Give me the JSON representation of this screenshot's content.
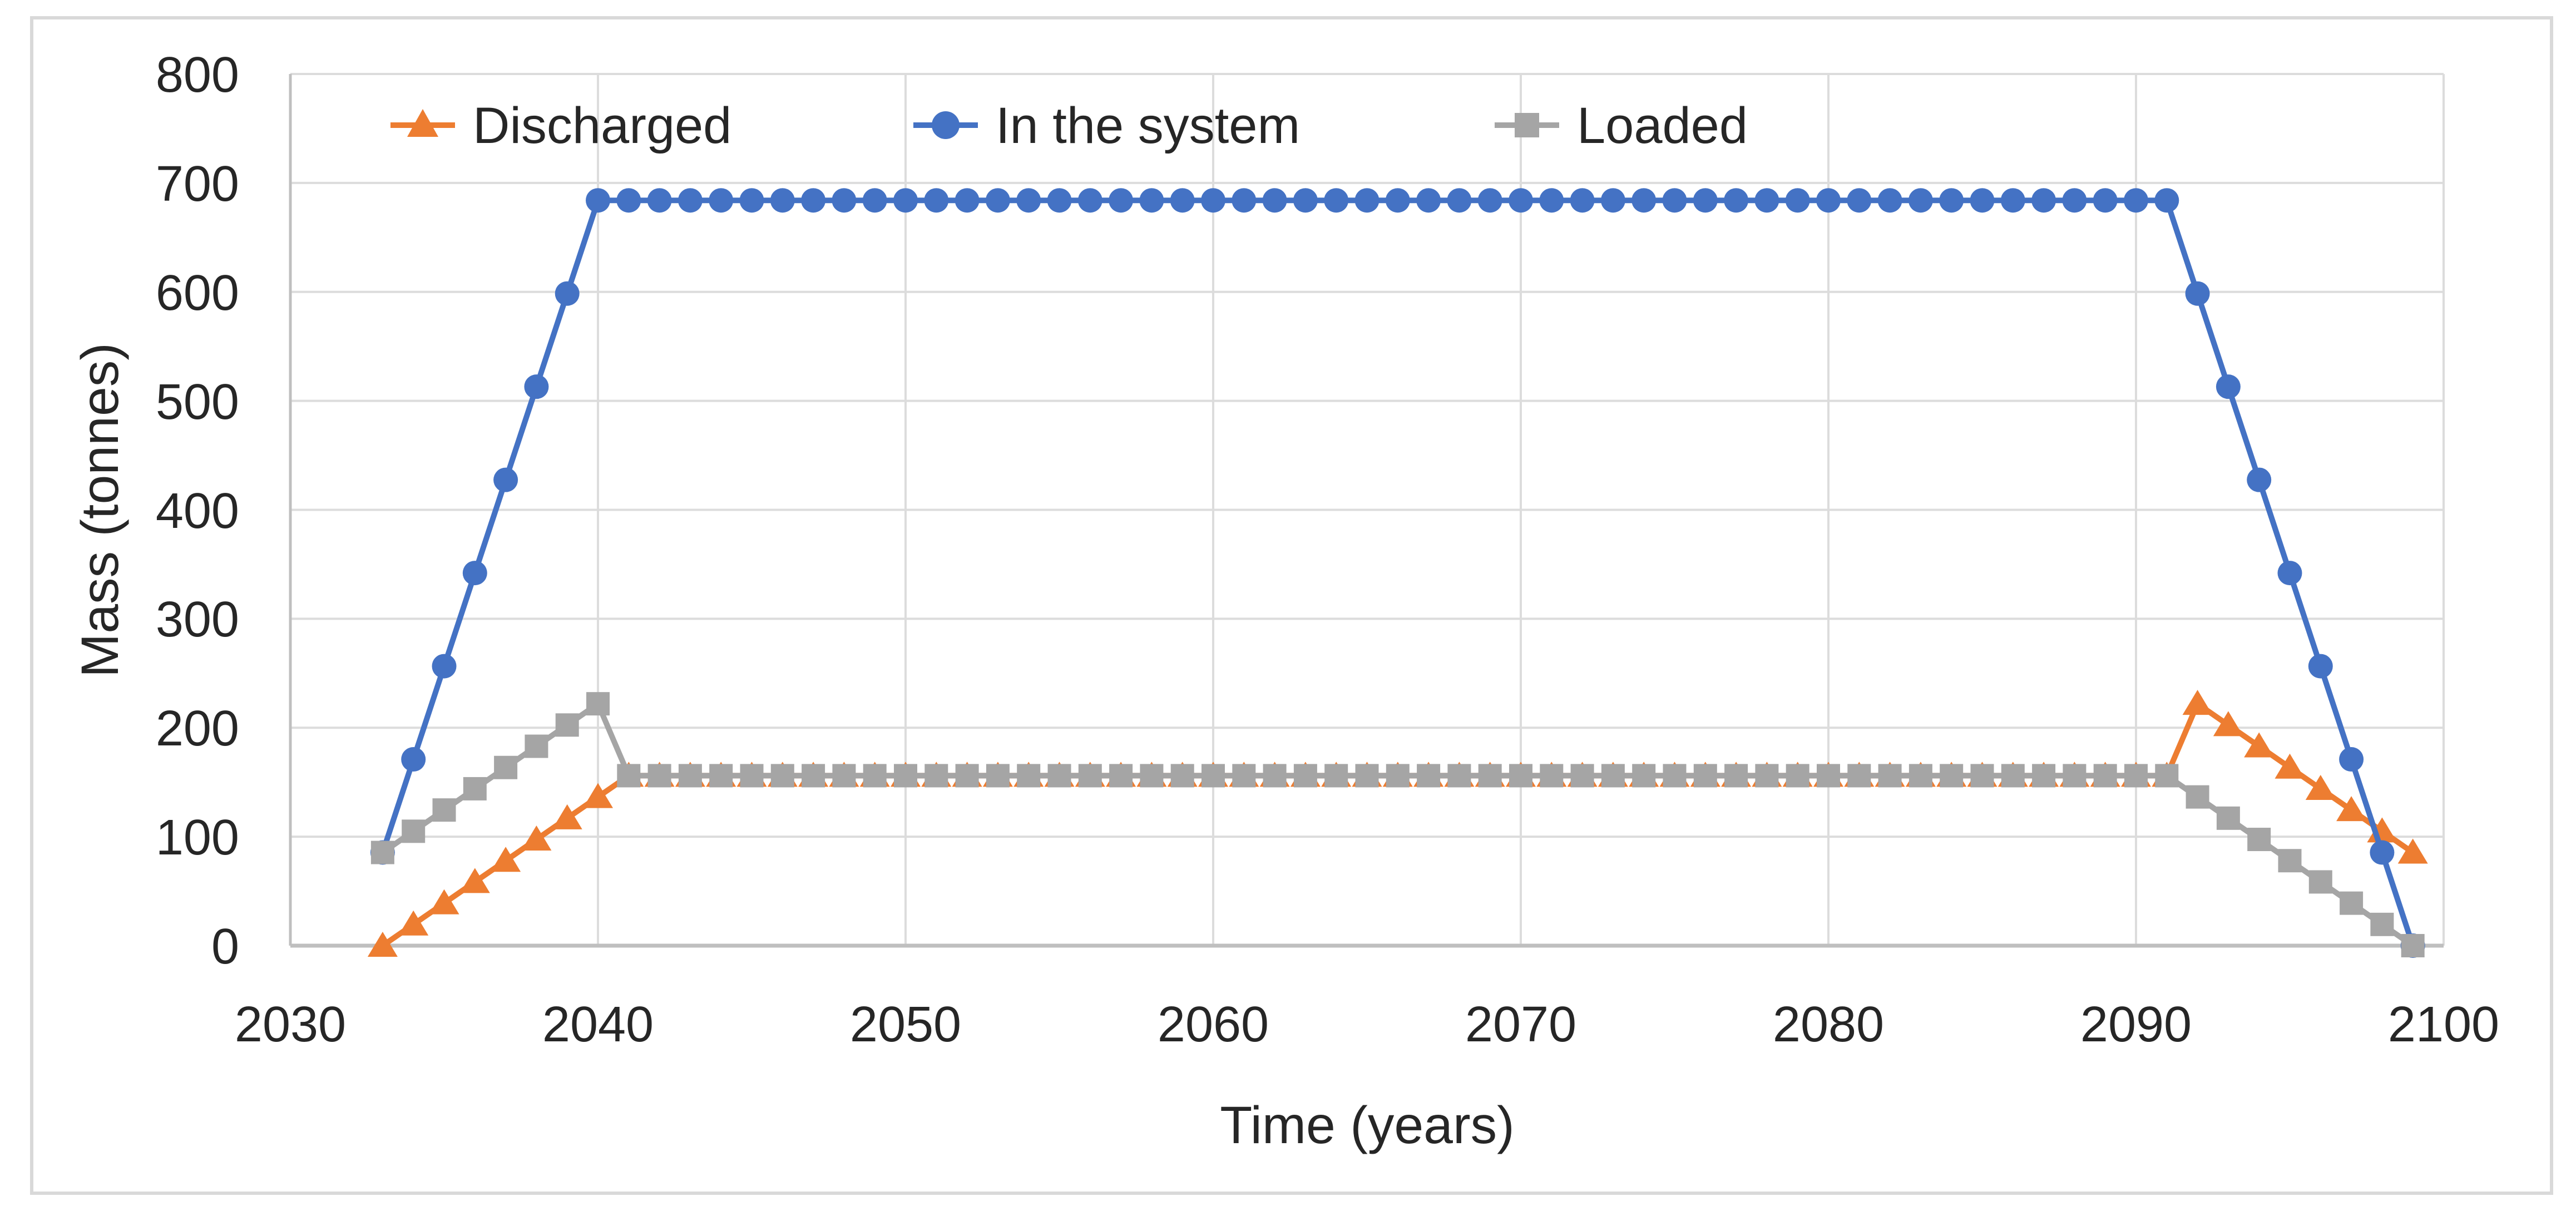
{
  "figure": {
    "background": "#FFFFFF",
    "border_color": "#D9D9D9",
    "gridline_color": "#DCDCDC",
    "axis_line_color": "#BFBFBF",
    "text_color": "#262626"
  },
  "chart_data": {
    "type": "line",
    "title": "",
    "xlabel": "Time (years)",
    "ylabel": "Mass (tonnes)",
    "xlim": [
      2030,
      2100
    ],
    "ylim": [
      0,
      800
    ],
    "grid": true,
    "legend_position": "top-inside",
    "x_tick_labels": [
      "2030",
      "2040",
      "2050",
      "2060",
      "2070",
      "2080",
      "2090",
      "2100"
    ],
    "y_tick_labels": [
      "0",
      "100",
      "200",
      "300",
      "400",
      "500",
      "600",
      "700",
      "800"
    ],
    "x_ticks": [
      2030,
      2040,
      2050,
      2060,
      2070,
      2080,
      2090,
      2100
    ],
    "y_ticks": [
      0,
      100,
      200,
      300,
      400,
      500,
      600,
      700,
      800
    ],
    "x": [
      2033,
      2034,
      2035,
      2036,
      2037,
      2038,
      2039,
      2040,
      2041,
      2042,
      2043,
      2044,
      2045,
      2046,
      2047,
      2048,
      2049,
      2050,
      2051,
      2052,
      2053,
      2054,
      2055,
      2056,
      2057,
      2058,
      2059,
      2060,
      2061,
      2062,
      2063,
      2064,
      2065,
      2066,
      2067,
      2068,
      2069,
      2070,
      2071,
      2072,
      2073,
      2074,
      2075,
      2076,
      2077,
      2078,
      2079,
      2080,
      2081,
      2082,
      2083,
      2084,
      2085,
      2086,
      2087,
      2088,
      2089,
      2090,
      2091,
      2092,
      2093,
      2094,
      2095,
      2096,
      2097,
      2098,
      2099
    ],
    "series": [
      {
        "name": "Discharged",
        "color": "#ED7D31",
        "marker": "triangle",
        "values": [
          0,
          19.5,
          39,
          58.5,
          78,
          97.5,
          117,
          136.5,
          156,
          156,
          156,
          156,
          156,
          156,
          156,
          156,
          156,
          156,
          156,
          156,
          156,
          156,
          156,
          156,
          156,
          156,
          156,
          156,
          156,
          156,
          156,
          156,
          156,
          156,
          156,
          156,
          156,
          156,
          156,
          156,
          156,
          156,
          156,
          156,
          156,
          156,
          156,
          156,
          156,
          156,
          156,
          156,
          156,
          156,
          156,
          156,
          156,
          156,
          156,
          222,
          202.5,
          183,
          163.5,
          144,
          124.5,
          105,
          85.5
        ]
      },
      {
        "name": "In the system",
        "color": "#4472C4",
        "marker": "circle",
        "values": [
          85.5,
          171,
          256.5,
          342,
          427.5,
          513,
          598.5,
          684,
          684,
          684,
          684,
          684,
          684,
          684,
          684,
          684,
          684,
          684,
          684,
          684,
          684,
          684,
          684,
          684,
          684,
          684,
          684,
          684,
          684,
          684,
          684,
          684,
          684,
          684,
          684,
          684,
          684,
          684,
          684,
          684,
          684,
          684,
          684,
          684,
          684,
          684,
          684,
          684,
          684,
          684,
          684,
          684,
          684,
          684,
          684,
          684,
          684,
          684,
          684,
          598.5,
          513,
          427.5,
          342,
          256.5,
          171,
          85.5,
          0
        ]
      },
      {
        "name": "Loaded",
        "color": "#A5A5A5",
        "marker": "square",
        "values": [
          85.5,
          105,
          124.5,
          144,
          163.5,
          183,
          202.5,
          222,
          156,
          156,
          156,
          156,
          156,
          156,
          156,
          156,
          156,
          156,
          156,
          156,
          156,
          156,
          156,
          156,
          156,
          156,
          156,
          156,
          156,
          156,
          156,
          156,
          156,
          156,
          156,
          156,
          156,
          156,
          156,
          156,
          156,
          156,
          156,
          156,
          156,
          156,
          156,
          156,
          156,
          156,
          156,
          156,
          156,
          156,
          156,
          156,
          156,
          156,
          156,
          136.5,
          117,
          97.5,
          78,
          58.5,
          39,
          19.5,
          0
        ]
      }
    ]
  }
}
